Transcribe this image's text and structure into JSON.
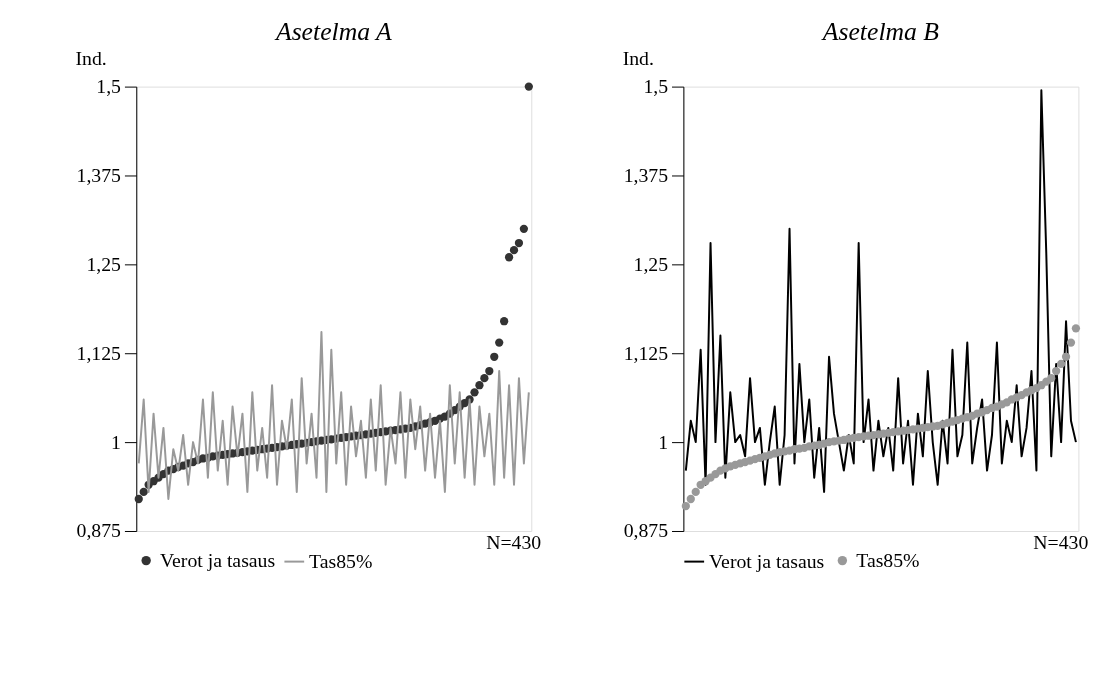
{
  "chart_data": [
    {
      "type": "line",
      "title": "Asetelma A",
      "ylabel": "Ind.",
      "annotations": [
        "N=430"
      ],
      "legend": "bottom",
      "tick_labels": "y",
      "categories": [
        null,
        null,
        null,
        null,
        null,
        null,
        null,
        null,
        null,
        null,
        null,
        null,
        null,
        null,
        null,
        null,
        null,
        null,
        null,
        null,
        null,
        null,
        null,
        null,
        null,
        null,
        null,
        null,
        null,
        null,
        null,
        null,
        null,
        null,
        null,
        null,
        null,
        null,
        null,
        null,
        null,
        null,
        null,
        null,
        null,
        null,
        null,
        null,
        null,
        null,
        null,
        null,
        null,
        null,
        null,
        null,
        null,
        null,
        null,
        null,
        null,
        null,
        null,
        null,
        null,
        null,
        null,
        null,
        null,
        null,
        null,
        null,
        null,
        null,
        null,
        null,
        null,
        null,
        null,
        null
      ],
      "ylim": [
        0.875,
        1.5
      ],
      "yticks": [
        {
          "value": 0.875,
          "label": "0,875"
        },
        1,
        {
          "value": 1.125,
          "label": "1,125"
        },
        {
          "value": 1.25,
          "label": "1,25"
        },
        {
          "value": 1.375,
          "label": "1,375"
        },
        {
          "value": 1.5,
          "label": "1,5"
        }
      ],
      "series": [
        {
          "name": "Verot ja tasaus",
          "type": "scatter",
          "marker": "circle",
          "color": "#333333",
          "values": [
            0.92,
            0.93,
            0.94,
            0.945,
            0.95,
            0.955,
            0.96,
            0.962,
            0.965,
            0.967,
            0.97,
            0.972,
            0.975,
            0.977,
            0.978,
            0.98,
            0.981,
            0.982,
            0.983,
            0.984,
            0.985,
            0.986,
            0.987,
            0.988,
            0.989,
            0.99,
            0.991,
            0.992,
            0.993,
            0.994,
            0.995,
            0.996,
            0.997,
            0.998,
            0.999,
            1.0,
            1.001,
            1.002,
            1.003,
            1.004,
            1.005,
            1.006,
            1.007,
            1.008,
            1.009,
            1.01,
            1.011,
            1.012,
            1.013,
            1.014,
            1.015,
            1.016,
            1.017,
            1.018,
            1.019,
            1.02,
            1.022,
            1.024,
            1.026,
            1.028,
            1.03,
            1.033,
            1.036,
            1.04,
            1.045,
            1.05,
            1.055,
            1.06,
            1.07,
            1.08,
            1.09,
            1.1,
            1.12,
            1.14,
            1.17,
            1.26,
            1.27,
            1.28,
            1.3,
            1.5
          ]
        },
        {
          "name": "Tas85%",
          "color": "#999999",
          "values": [
            0.97,
            1.06,
            0.93,
            1.04,
            0.95,
            1.02,
            0.92,
            0.99,
            0.96,
            1.01,
            0.94,
            1.0,
            0.97,
            1.06,
            0.95,
            1.07,
            0.96,
            1.03,
            0.94,
            1.05,
            0.98,
            1.04,
            0.93,
            1.07,
            0.96,
            1.02,
            0.95,
            1.08,
            0.94,
            1.03,
            0.99,
            1.06,
            0.93,
            1.09,
            0.97,
            1.04,
            0.95,
            1.155,
            0.93,
            1.13,
            0.97,
            1.07,
            0.94,
            1.05,
            0.98,
            1.03,
            0.95,
            1.06,
            0.96,
            1.08,
            0.94,
            1.02,
            0.97,
            1.07,
            0.95,
            1.06,
            0.99,
            1.05,
            0.96,
            1.04,
            0.95,
            1.03,
            0.93,
            1.08,
            0.97,
            1.07,
            0.95,
            1.06,
            0.94,
            1.05,
            0.98,
            1.04,
            0.94,
            1.1,
            0.95,
            1.08,
            0.94,
            1.09,
            0.97,
            1.07
          ]
        }
      ]
    },
    {
      "type": "line",
      "title": "Asetelma B",
      "ylabel": "Ind.",
      "annotations": [
        "N=430"
      ],
      "legend": "bottom",
      "tick_labels": "y",
      "categories": [
        null,
        null,
        null,
        null,
        null,
        null,
        null,
        null,
        null,
        null,
        null,
        null,
        null,
        null,
        null,
        null,
        null,
        null,
        null,
        null,
        null,
        null,
        null,
        null,
        null,
        null,
        null,
        null,
        null,
        null,
        null,
        null,
        null,
        null,
        null,
        null,
        null,
        null,
        null,
        null,
        null,
        null,
        null,
        null,
        null,
        null,
        null,
        null,
        null,
        null,
        null,
        null,
        null,
        null,
        null,
        null,
        null,
        null,
        null,
        null,
        null,
        null,
        null,
        null,
        null,
        null,
        null,
        null,
        null,
        null,
        null,
        null,
        null,
        null,
        null,
        null,
        null,
        null,
        null,
        null
      ],
      "ylim": [
        0.875,
        1.5
      ],
      "yticks": [
        {
          "value": 0.875,
          "label": "0,875"
        },
        1,
        {
          "value": 1.125,
          "label": "1,125"
        },
        {
          "value": 1.25,
          "label": "1,25"
        },
        {
          "value": 1.375,
          "label": "1,375"
        },
        {
          "value": 1.5,
          "label": "1,5"
        }
      ],
      "series": [
        {
          "name": "Verot ja tasaus",
          "color": "#000000",
          "values": [
            0.96,
            1.03,
            1.0,
            1.13,
            0.94,
            1.28,
            1.0,
            1.15,
            0.95,
            1.07,
            1.0,
            1.01,
            0.98,
            1.09,
            1.0,
            1.02,
            0.94,
            1.0,
            1.05,
            0.94,
            1.01,
            1.3,
            0.97,
            1.11,
            1.0,
            1.06,
            0.95,
            1.02,
            0.93,
            1.12,
            1.04,
            1.0,
            0.96,
            1.01,
            0.97,
            1.28,
            1.0,
            1.06,
            0.96,
            1.03,
            0.98,
            1.02,
            0.96,
            1.09,
            0.97,
            1.03,
            0.94,
            1.04,
            0.98,
            1.1,
            1.0,
            0.94,
            1.03,
            0.97,
            1.13,
            0.98,
            1.01,
            1.14,
            0.97,
            1.02,
            1.06,
            0.96,
            1.01,
            1.14,
            0.97,
            1.03,
            1.0,
            1.08,
            0.98,
            1.02,
            1.1,
            0.96,
            1.495,
            1.265,
            0.98,
            1.11,
            1.0,
            1.17,
            1.03,
            1.0
          ]
        },
        {
          "name": "Tas85%",
          "type": "scatter",
          "marker": "circle",
          "color": "#999999",
          "values": [
            0.91,
            0.92,
            0.93,
            0.94,
            0.945,
            0.95,
            0.955,
            0.96,
            0.963,
            0.966,
            0.968,
            0.97,
            0.972,
            0.974,
            0.976,
            0.978,
            0.98,
            0.982,
            0.984,
            0.986,
            0.987,
            0.988,
            0.99,
            0.991,
            0.992,
            0.994,
            0.995,
            0.996,
            0.998,
            1.0,
            1.001,
            1.002,
            1.003,
            1.005,
            1.006,
            1.007,
            1.008,
            1.009,
            1.01,
            1.011,
            1.012,
            1.013,
            1.014,
            1.015,
            1.016,
            1.017,
            1.018,
            1.019,
            1.02,
            1.021,
            1.022,
            1.023,
            1.025,
            1.027,
            1.029,
            1.031,
            1.033,
            1.035,
            1.037,
            1.04,
            1.042,
            1.045,
            1.048,
            1.05,
            1.053,
            1.056,
            1.06,
            1.063,
            1.066,
            1.07,
            1.073,
            1.076,
            1.08,
            1.085,
            1.09,
            1.1,
            1.11,
            1.12,
            1.14,
            1.16
          ]
        }
      ]
    }
  ]
}
